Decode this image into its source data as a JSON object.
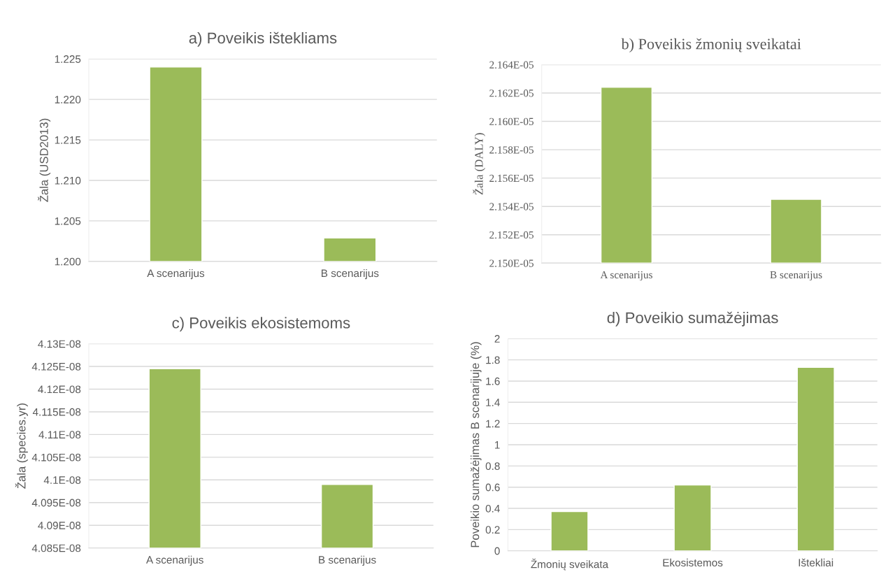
{
  "chart_data": [
    {
      "type": "bar",
      "title": "a) Poveikis ištekliams",
      "ylabel": "Žala (USD2013)",
      "categories": [
        "A scenarijus",
        "B scenarijus"
      ],
      "values": [
        1.224,
        1.2029
      ],
      "color": "#9bbb59",
      "ylim": [
        1.2,
        1.225
      ],
      "yticks": [
        {
          "value": 1.2,
          "label": "1.200"
        },
        {
          "value": 1.205,
          "label": "1.205"
        },
        {
          "value": 1.21,
          "label": "1.210"
        },
        {
          "value": 1.215,
          "label": "1.215"
        },
        {
          "value": 1.22,
          "label": "1.220"
        },
        {
          "value": 1.225,
          "label": "1.225"
        }
      ],
      "grid": "y",
      "legend": false
    },
    {
      "type": "bar",
      "title": "b) Poveikis žmonių sveikatai",
      "ylabel": "Žala (DALY)",
      "categories": [
        "A scenarijus",
        "B scenarijus"
      ],
      "values": [
        2.1624e-05,
        2.1545e-05
      ],
      "color": "#9bbb59",
      "ylim": [
        2.15e-05,
        2.164e-05
      ],
      "yticks": [
        {
          "value": 2.15e-05,
          "label": "2.150E-05"
        },
        {
          "value": 2.152e-05,
          "label": "2.152E-05"
        },
        {
          "value": 2.154e-05,
          "label": "2.154E-05"
        },
        {
          "value": 2.156e-05,
          "label": "2.156E-05"
        },
        {
          "value": 2.158e-05,
          "label": "2.158E-05"
        },
        {
          "value": 2.16e-05,
          "label": "2.160E-05"
        },
        {
          "value": 2.162e-05,
          "label": "2.162E-05"
        },
        {
          "value": 2.164e-05,
          "label": "2.164E-05"
        }
      ],
      "grid": "y",
      "legend": false
    },
    {
      "type": "bar",
      "title": "c) Poveikis ekosistemoms",
      "ylabel": "Žala (species.yr)",
      "categories": [
        "A scenarijus",
        "B scenarijus"
      ],
      "values": [
        4.1245e-08,
        4.099e-08
      ],
      "color": "#9bbb59",
      "ylim": [
        4.085e-08,
        4.13e-08
      ],
      "yticks": [
        {
          "value": 4.085e-08,
          "label": "4.085E-08"
        },
        {
          "value": 4.09e-08,
          "label": "4.09E-08"
        },
        {
          "value": 4.095e-08,
          "label": "4.095E-08"
        },
        {
          "value": 4.1e-08,
          "label": "4.1E-08"
        },
        {
          "value": 4.105e-08,
          "label": "4.105E-08"
        },
        {
          "value": 4.11e-08,
          "label": "4.11E-08"
        },
        {
          "value": 4.115e-08,
          "label": "4.115E-08"
        },
        {
          "value": 4.12e-08,
          "label": "4.12E-08"
        },
        {
          "value": 4.125e-08,
          "label": "4.125E-08"
        },
        {
          "value": 4.13e-08,
          "label": "4.13E-08"
        }
      ],
      "grid": "y",
      "legend": false
    },
    {
      "type": "bar",
      "title": "d) Poveikio sumažėjimas",
      "ylabel": "Poveikio sumažėjimas B scenarijuje (%)",
      "categories": [
        "Žmonių sveikata",
        "Ekosistemos",
        "Ištekliai"
      ],
      "values": [
        0.37,
        0.62,
        1.73
      ],
      "color": "#9bbb59",
      "ylim": [
        0,
        2
      ],
      "yticks": [
        0,
        0.2,
        0.4,
        0.6,
        0.8,
        1,
        1.2,
        1.4,
        1.6,
        1.8,
        2
      ],
      "grid": "y",
      "legend": false
    }
  ]
}
